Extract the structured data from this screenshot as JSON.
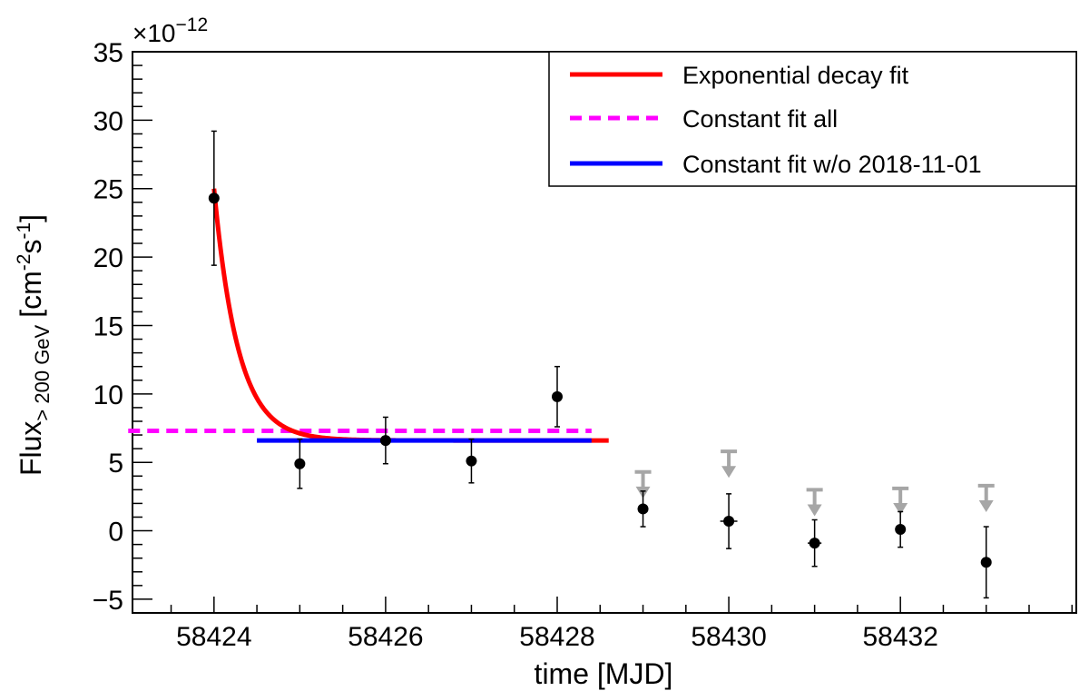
{
  "chart_data": {
    "type": "scatter",
    "xlabel": "time [MJD]",
    "ylabel_main": "Flux",
    "ylabel_sub": "> 200 GeV",
    "ylabel_units_open": "[cm",
    "ylabel_units_exp1": "-2",
    "ylabel_units_mid": "s",
    "ylabel_units_exp2": "-1",
    "ylabel_units_close": "]",
    "multiplier_base": "×10",
    "multiplier_exp": "−12",
    "xlim": [
      58423.05,
      58434.05
    ],
    "ylim": [
      -6,
      35
    ],
    "xticks": [
      58424,
      58426,
      58428,
      58430,
      58432
    ],
    "yticks": [
      -5,
      0,
      5,
      10,
      15,
      20,
      25,
      30,
      35
    ],
    "ytick_labels": [
      "−5",
      "0",
      "5",
      "10",
      "15",
      "20",
      "25",
      "30",
      "35"
    ],
    "points": [
      {
        "x": 58424.0,
        "y": 24.3,
        "err": 4.9
      },
      {
        "x": 58425.0,
        "y": 4.9,
        "err": 1.8
      },
      {
        "x": 58426.0,
        "y": 6.6,
        "err": 1.7
      },
      {
        "x": 58427.0,
        "y": 5.1,
        "err": 1.6
      },
      {
        "x": 58428.0,
        "y": 9.8,
        "err": 2.2
      },
      {
        "x": 58429.0,
        "y": 1.6,
        "err": 1.3
      },
      {
        "x": 58430.0,
        "y": 0.7,
        "err": 2.0,
        "xerr": 0.1
      },
      {
        "x": 58431.0,
        "y": -0.9,
        "err": 1.7,
        "xerr": 0.08
      },
      {
        "x": 58432.0,
        "y": 0.1,
        "err": 1.3
      },
      {
        "x": 58433.0,
        "y": -2.3,
        "err": 2.6
      }
    ],
    "upper_limits": [
      {
        "x": 58429.0,
        "y": 4.3
      },
      {
        "x": 58430.0,
        "y": 5.8
      },
      {
        "x": 58431.0,
        "y": 3.0
      },
      {
        "x": 58432.0,
        "y": 3.1
      },
      {
        "x": 58433.0,
        "y": 3.3
      }
    ],
    "fits": {
      "exponential": {
        "label": "Exponential decay fit",
        "color": "#ff0000",
        "x_start": 58424.0,
        "x_end": 58428.6,
        "amplitude": 18.4,
        "tau": 0.28,
        "baseline": 6.6
      },
      "constant_all": {
        "label": "Constant fit all",
        "color": "#ff00ff",
        "x_start": 58423.0,
        "x_end": 58428.4,
        "value": 7.3
      },
      "constant_wo": {
        "label": "Constant fit w/o 2018-11-01",
        "color": "#0000ff",
        "x_start": 58424.5,
        "x_end": 58428.4,
        "value": 6.6
      }
    },
    "colors": {
      "points": "#000000",
      "upper_limits": "#a6a6a6"
    },
    "legend_position": "top-right"
  }
}
